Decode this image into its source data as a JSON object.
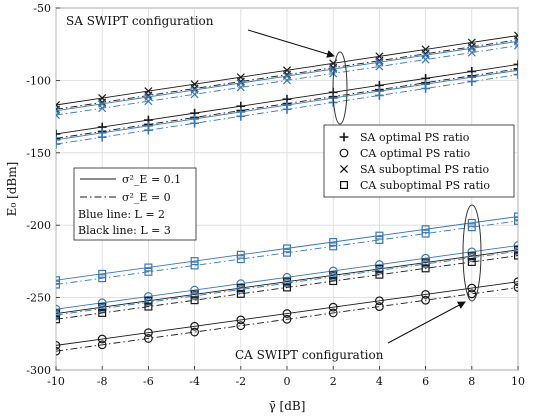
{
  "chart_data": {
    "type": "line",
    "xlabel": "γ̄ [dB]",
    "ylabel": "E₀ [dBm]",
    "xlim": [
      -10,
      10
    ],
    "ylim": [
      -300,
      -50
    ],
    "xticks": [
      -10,
      -8,
      -6,
      -4,
      -2,
      0,
      2,
      4,
      6,
      8,
      10
    ],
    "yticks": [
      -50,
      -100,
      -150,
      -200,
      -250,
      -300
    ],
    "grid": true,
    "x": [
      -10,
      -8,
      -6,
      -4,
      -2,
      0,
      2,
      4,
      6,
      8,
      10
    ],
    "colors": {
      "black": "#1a1a1a",
      "blue": "#3a78b5"
    },
    "series": [
      {
        "group": "SA",
        "L": 3,
        "marker": "x",
        "sigma": "0.1",
        "values": [
          -117,
          -112.2,
          -107.4,
          -102.6,
          -97.8,
          -93,
          -88.2,
          -83.4,
          -78.6,
          -73.8,
          -69
        ]
      },
      {
        "group": "SA",
        "L": 3,
        "marker": "x",
        "sigma": "0",
        "values": [
          -120,
          -115.2,
          -110.4,
          -105.6,
          -100.8,
          -96,
          -91.2,
          -86.4,
          -81.6,
          -76.8,
          -72
        ]
      },
      {
        "group": "SA",
        "L": 2,
        "marker": "x",
        "sigma": "0.1",
        "values": [
          -121,
          -116.2,
          -111.4,
          -106.6,
          -101.8,
          -97,
          -92.2,
          -87.4,
          -82.6,
          -77.8,
          -73
        ]
      },
      {
        "group": "SA",
        "L": 2,
        "marker": "x",
        "sigma": "0",
        "values": [
          -124,
          -119.2,
          -114.4,
          -109.6,
          -104.8,
          -100,
          -95.2,
          -90.4,
          -85.6,
          -80.8,
          -76
        ]
      },
      {
        "group": "SA",
        "L": 3,
        "marker": "+",
        "sigma": "0.1",
        "values": [
          -137,
          -132.2,
          -127.4,
          -122.6,
          -117.8,
          -113,
          -108.2,
          -103.4,
          -98.6,
          -93.8,
          -89
        ]
      },
      {
        "group": "SA",
        "L": 3,
        "marker": "+",
        "sigma": "0",
        "values": [
          -140,
          -135.2,
          -130.4,
          -125.6,
          -120.8,
          -116,
          -111.2,
          -106.4,
          -101.6,
          -96.8,
          -92
        ]
      },
      {
        "group": "SA",
        "L": 2,
        "marker": "+",
        "sigma": "0.1",
        "values": [
          -141,
          -136.2,
          -131.4,
          -126.6,
          -121.8,
          -117,
          -112.2,
          -107.4,
          -102.6,
          -97.8,
          -93
        ]
      },
      {
        "group": "SA",
        "L": 2,
        "marker": "+",
        "sigma": "0",
        "values": [
          -144,
          -139.2,
          -134.4,
          -129.6,
          -124.8,
          -120,
          -115.2,
          -110.4,
          -105.6,
          -100.8,
          -96
        ]
      },
      {
        "group": "CA",
        "L": 2,
        "marker": "square",
        "sigma": "0.1",
        "values": [
          -238,
          -233.6,
          -229.2,
          -224.8,
          -220.4,
          -216,
          -211.6,
          -207.2,
          -202.8,
          -198.4,
          -194
        ]
      },
      {
        "group": "CA",
        "L": 2,
        "marker": "square",
        "sigma": "0",
        "values": [
          -241,
          -236.6,
          -232.2,
          -227.8,
          -223.4,
          -219,
          -214.6,
          -210.2,
          -205.8,
          -201.4,
          -197
        ]
      },
      {
        "group": "CA",
        "L": 2,
        "marker": "circle",
        "sigma": "0.1",
        "values": [
          -258,
          -253.6,
          -249.2,
          -244.8,
          -240.4,
          -236,
          -231.6,
          -227.2,
          -222.8,
          -218.4,
          -214
        ]
      },
      {
        "group": "CA",
        "L": 3,
        "marker": "square",
        "sigma": "0.1",
        "values": [
          -261,
          -256.6,
          -252.2,
          -247.8,
          -243.4,
          -239,
          -234.6,
          -230.2,
          -225.8,
          -221.4,
          -217
        ]
      },
      {
        "group": "CA",
        "L": 2,
        "marker": "circle",
        "sigma": "0",
        "values": [
          -262,
          -257.6,
          -253.2,
          -248.8,
          -244.4,
          -240,
          -235.6,
          -231.2,
          -226.8,
          -222.4,
          -218
        ]
      },
      {
        "group": "CA",
        "L": 3,
        "marker": "square",
        "sigma": "0",
        "values": [
          -265,
          -260.6,
          -256.2,
          -251.8,
          -247.4,
          -243,
          -238.6,
          -234.2,
          -229.8,
          -225.4,
          -221
        ]
      },
      {
        "group": "CA",
        "L": 3,
        "marker": "circle",
        "sigma": "0.1",
        "values": [
          -283,
          -278.6,
          -274.2,
          -269.8,
          -265.4,
          -261,
          -256.6,
          -252.2,
          -247.8,
          -243.4,
          -239
        ]
      },
      {
        "group": "CA",
        "L": 3,
        "marker": "circle",
        "sigma": "0",
        "values": [
          -287,
          -282.6,
          -278.2,
          -273.8,
          -269.4,
          -265,
          -260.6,
          -256.2,
          -251.8,
          -247.4,
          -243
        ]
      }
    ],
    "legend_markers": [
      {
        "marker": "+",
        "label": "SA optimal PS ratio"
      },
      {
        "marker": "circle",
        "label": "CA optimal PS ratio"
      },
      {
        "marker": "x",
        "label": "SA suboptimal PS ratio"
      },
      {
        "marker": "square",
        "label": "CA suboptimal PS ratio"
      }
    ],
    "legend_lines": [
      {
        "style": "solid",
        "label": "σ²_E = 0.1"
      },
      {
        "style": "dashdot",
        "label": "σ²_E = 0"
      }
    ],
    "legend_notes": [
      "Blue line: L = 2",
      "Black line: L = 3"
    ],
    "annotations": {
      "sa": "SA SWIPT configuration",
      "ca": "CA SWIPT configuration"
    }
  }
}
